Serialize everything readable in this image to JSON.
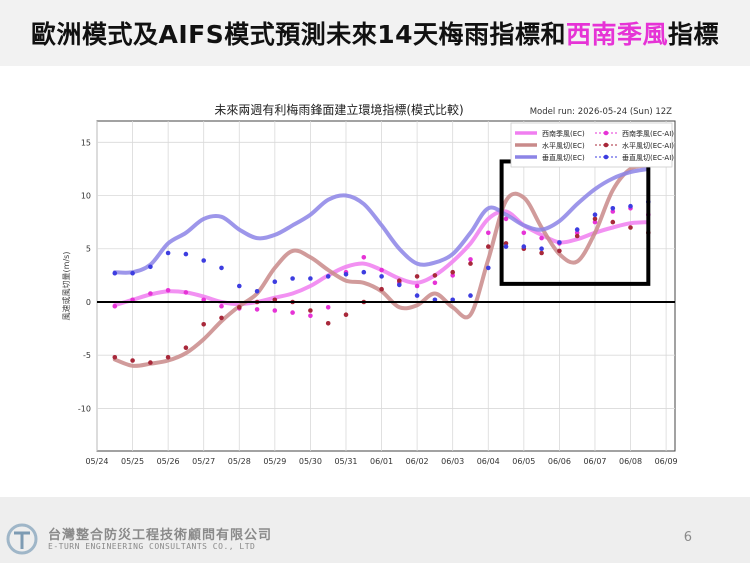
{
  "slide": {
    "title_part1": "歐洲模式及AIFS模式預測未來14天梅雨指標和",
    "title_highlight": "西南季風",
    "title_part2": "指標",
    "company_cn": "台灣整合防災工程技術顧問有限公司",
    "company_en": "E-TURN ENGINEERING CONSULTANTS CO., LTD",
    "page_number": "6"
  },
  "colors": {
    "highlight": "#e633d6"
  },
  "chart_data": {
    "type": "line",
    "title": "未來兩週有利梅雨鋒面建立環境指標(模式比較)",
    "subtitle": "Model run: 2026-05-24 (Sun) 12Z",
    "xlabel": "",
    "ylabel": "風速或風切量(m/s)",
    "xlim": [
      "2026-05-24 00:00",
      "2026-06-09 06:00"
    ],
    "ylim": [
      -14,
      17
    ],
    "yticks": [
      -10,
      -5,
      0,
      5,
      10,
      15
    ],
    "xticks": [
      "05/24",
      "05/25",
      "05/26",
      "05/27",
      "05/28",
      "05/29",
      "05/30",
      "05/31",
      "06/01",
      "06/02",
      "06/03",
      "06/04",
      "06/05",
      "06/06",
      "06/07",
      "06/08",
      "06/09"
    ],
    "grid": true,
    "legend_position": "top-right",
    "zero_line": true,
    "highlight_box": {
      "x": [
        "2026-06-04 09:00",
        "2026-06-08 12:00"
      ],
      "y": [
        1.7,
        13.2
      ]
    },
    "series": [
      {
        "name": "西南季風(EC)",
        "style": "line",
        "color": "#f07ef0",
        "x": [
          "2026-05-24 12:00",
          "2026-05-25 00:00",
          "2026-05-25 12:00",
          "2026-05-26 00:00",
          "2026-05-26 12:00",
          "2026-05-27 00:00",
          "2026-05-27 12:00",
          "2026-05-28 00:00",
          "2026-05-28 12:00",
          "2026-05-29 00:00",
          "2026-05-29 12:00",
          "2026-05-30 00:00",
          "2026-05-30 12:00",
          "2026-05-31 00:00",
          "2026-05-31 12:00",
          "2026-06-01 00:00",
          "2026-06-01 12:00",
          "2026-06-02 00:00",
          "2026-06-02 12:00",
          "2026-06-03 00:00",
          "2026-06-03 12:00",
          "2026-06-04 00:00",
          "2026-06-04 12:00",
          "2026-06-05 00:00",
          "2026-06-05 12:00",
          "2026-06-06 00:00",
          "2026-06-06 12:00",
          "2026-06-07 00:00",
          "2026-06-07 12:00",
          "2026-06-08 00:00",
          "2026-06-08 12:00"
        ],
        "values": [
          -0.3,
          0.2,
          0.7,
          1.0,
          0.9,
          0.5,
          0.0,
          -0.2,
          0.0,
          0.4,
          0.8,
          1.5,
          2.5,
          3.3,
          3.6,
          3.0,
          2.2,
          1.8,
          2.5,
          3.8,
          5.5,
          7.8,
          8.5,
          7.2,
          6.3,
          5.6,
          5.9,
          6.5,
          7.0,
          7.4,
          7.5
        ]
      },
      {
        "name": "水平風切(EC)",
        "style": "line",
        "color": "#c98a8a",
        "x": [
          "2026-05-24 12:00",
          "2026-05-25 00:00",
          "2026-05-25 12:00",
          "2026-05-26 00:00",
          "2026-05-26 12:00",
          "2026-05-27 00:00",
          "2026-05-27 12:00",
          "2026-05-28 00:00",
          "2026-05-28 12:00",
          "2026-05-29 00:00",
          "2026-05-29 12:00",
          "2026-05-30 00:00",
          "2026-05-30 12:00",
          "2026-05-31 00:00",
          "2026-05-31 12:00",
          "2026-06-01 00:00",
          "2026-06-01 12:00",
          "2026-06-02 00:00",
          "2026-06-02 12:00",
          "2026-06-03 00:00",
          "2026-06-03 12:00",
          "2026-06-04 00:00",
          "2026-06-04 12:00",
          "2026-06-05 00:00",
          "2026-06-05 12:00",
          "2026-06-06 00:00",
          "2026-06-06 12:00",
          "2026-06-07 00:00",
          "2026-06-07 12:00",
          "2026-06-08 00:00",
          "2026-06-08 12:00"
        ],
        "values": [
          -5.4,
          -6.0,
          -5.8,
          -5.5,
          -4.8,
          -3.5,
          -1.8,
          -0.4,
          0.8,
          3.2,
          4.8,
          4.2,
          3.0,
          2.0,
          1.8,
          1.0,
          -0.5,
          -0.3,
          0.8,
          -0.5,
          -1.2,
          4.0,
          9.5,
          9.8,
          7.0,
          4.5,
          3.8,
          6.5,
          10.5,
          12.5,
          12.8
        ]
      },
      {
        "name": "垂直風切(EC)",
        "style": "line",
        "color": "#8c84e6",
        "x": [
          "2026-05-24 12:00",
          "2026-05-25 00:00",
          "2026-05-25 12:00",
          "2026-05-26 00:00",
          "2026-05-26 12:00",
          "2026-05-27 00:00",
          "2026-05-27 12:00",
          "2026-05-28 00:00",
          "2026-05-28 12:00",
          "2026-05-29 00:00",
          "2026-05-29 12:00",
          "2026-05-30 00:00",
          "2026-05-30 12:00",
          "2026-05-31 00:00",
          "2026-05-31 12:00",
          "2026-06-01 00:00",
          "2026-06-01 12:00",
          "2026-06-02 00:00",
          "2026-06-02 12:00",
          "2026-06-03 00:00",
          "2026-06-03 12:00",
          "2026-06-04 00:00",
          "2026-06-04 12:00",
          "2026-06-05 00:00",
          "2026-06-05 12:00",
          "2026-06-06 00:00",
          "2026-06-06 12:00",
          "2026-06-07 00:00",
          "2026-06-07 12:00",
          "2026-06-08 00:00",
          "2026-06-08 12:00"
        ],
        "values": [
          2.8,
          2.8,
          3.5,
          5.5,
          6.5,
          7.8,
          8.0,
          6.8,
          6.0,
          6.3,
          7.2,
          8.2,
          9.6,
          10.0,
          9.2,
          7.2,
          5.0,
          3.6,
          3.7,
          4.5,
          6.5,
          8.8,
          8.2,
          7.2,
          6.8,
          7.6,
          9.2,
          10.6,
          11.6,
          12.2,
          12.5
        ]
      },
      {
        "name": "西南季風(EC-AI)",
        "style": "dotted",
        "color": "#e633d6",
        "x": [
          "2026-05-24 12:00",
          "2026-05-25 00:00",
          "2026-05-25 12:00",
          "2026-05-26 00:00",
          "2026-05-26 12:00",
          "2026-05-27 00:00",
          "2026-05-27 12:00",
          "2026-05-28 00:00",
          "2026-05-28 12:00",
          "2026-05-29 00:00",
          "2026-05-29 12:00",
          "2026-05-30 00:00",
          "2026-05-30 12:00",
          "2026-05-31 00:00",
          "2026-05-31 12:00",
          "2026-06-01 00:00",
          "2026-06-01 12:00",
          "2026-06-02 00:00",
          "2026-06-02 12:00",
          "2026-06-03 00:00",
          "2026-06-03 12:00",
          "2026-06-04 00:00",
          "2026-06-04 12:00",
          "2026-06-05 00:00",
          "2026-06-05 12:00",
          "2026-06-06 00:00",
          "2026-06-06 12:00",
          "2026-06-07 00:00",
          "2026-06-07 12:00",
          "2026-06-08 00:00",
          "2026-06-08 12:00"
        ],
        "values": [
          -0.4,
          0.2,
          0.8,
          1.1,
          0.9,
          0.2,
          -0.4,
          -0.6,
          -0.7,
          -0.8,
          -1.0,
          -1.3,
          -0.5,
          2.8,
          4.2,
          3.0,
          1.8,
          1.5,
          1.8,
          2.5,
          4.0,
          6.5,
          7.8,
          6.5,
          6.0,
          5.5,
          6.5,
          7.5,
          8.5,
          8.8,
          8.2
        ]
      },
      {
        "name": "水平風切(EC-AI)",
        "style": "dotted",
        "color": "#a8283a",
        "x": [
          "2026-05-24 12:00",
          "2026-05-25 00:00",
          "2026-05-25 12:00",
          "2026-05-26 00:00",
          "2026-05-26 12:00",
          "2026-05-27 00:00",
          "2026-05-27 12:00",
          "2026-05-28 00:00",
          "2026-05-28 12:00",
          "2026-05-29 00:00",
          "2026-05-29 12:00",
          "2026-05-30 00:00",
          "2026-05-30 12:00",
          "2026-05-31 00:00",
          "2026-05-31 12:00",
          "2026-06-01 00:00",
          "2026-06-01 12:00",
          "2026-06-02 00:00",
          "2026-06-02 12:00",
          "2026-06-03 00:00",
          "2026-06-03 12:00",
          "2026-06-04 00:00",
          "2026-06-04 12:00",
          "2026-06-05 00:00",
          "2026-06-05 12:00",
          "2026-06-06 00:00",
          "2026-06-06 12:00",
          "2026-06-07 00:00",
          "2026-06-07 12:00",
          "2026-06-08 00:00",
          "2026-06-08 12:00"
        ],
        "values": [
          -5.2,
          -5.5,
          -5.7,
          -5.2,
          -4.3,
          -2.1,
          -1.5,
          -0.5,
          0.0,
          0.2,
          0.0,
          -0.8,
          -2.0,
          -1.2,
          0.0,
          1.2,
          2.0,
          2.4,
          2.5,
          2.8,
          3.6,
          5.2,
          5.5,
          5.0,
          4.6,
          4.8,
          6.2,
          7.8,
          7.5,
          7.0,
          6.5
        ]
      },
      {
        "name": "垂直風切(EC-AI)",
        "style": "dotted",
        "color": "#3d3de0",
        "x": [
          "2026-05-24 12:00",
          "2026-05-25 00:00",
          "2026-05-25 12:00",
          "2026-05-26 00:00",
          "2026-05-26 12:00",
          "2026-05-27 00:00",
          "2026-05-27 12:00",
          "2026-05-28 00:00",
          "2026-05-28 12:00",
          "2026-05-29 00:00",
          "2026-05-29 12:00",
          "2026-05-30 00:00",
          "2026-05-30 12:00",
          "2026-05-31 00:00",
          "2026-05-31 12:00",
          "2026-06-01 00:00",
          "2026-06-01 12:00",
          "2026-06-02 00:00",
          "2026-06-02 12:00",
          "2026-06-03 00:00",
          "2026-06-03 12:00",
          "2026-06-04 00:00",
          "2026-06-04 12:00",
          "2026-06-05 00:00",
          "2026-06-05 12:00",
          "2026-06-06 00:00",
          "2026-06-06 12:00",
          "2026-06-07 00:00",
          "2026-06-07 12:00",
          "2026-06-08 00:00",
          "2026-06-08 12:00"
        ],
        "values": [
          2.7,
          2.7,
          3.3,
          4.6,
          4.5,
          3.9,
          3.2,
          1.5,
          1.0,
          1.9,
          2.2,
          2.2,
          2.4,
          2.6,
          2.8,
          2.4,
          1.6,
          0.6,
          0.2,
          0.2,
          0.6,
          3.2,
          5.2,
          5.2,
          5.0,
          5.6,
          6.8,
          8.2,
          8.8,
          9.0,
          9.4
        ]
      }
    ]
  }
}
